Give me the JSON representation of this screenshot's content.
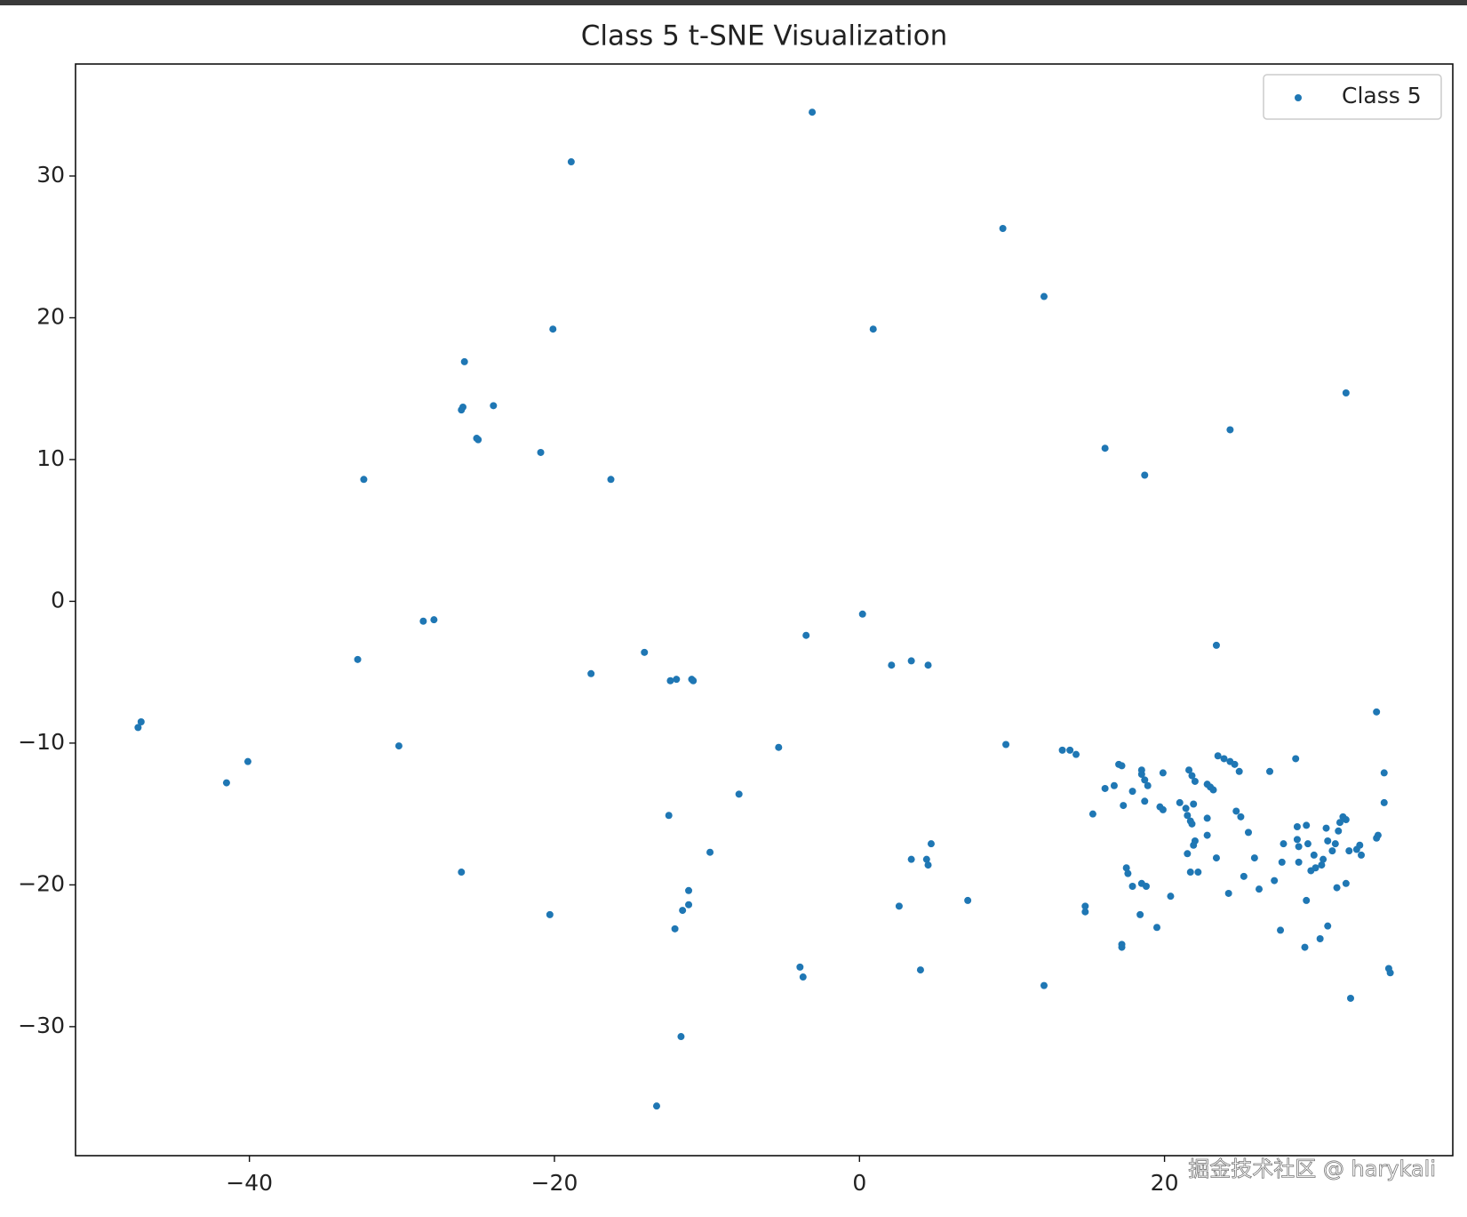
{
  "chart_data": {
    "type": "scatter",
    "title": "Class 5 t-SNE Visualization",
    "xlim": [
      -51.4,
      38.9
    ],
    "ylim": [
      -39.1,
      37.9
    ],
    "xticks": [
      {
        "value": -40,
        "label": "−40"
      },
      {
        "value": -20,
        "label": "−20"
      },
      0,
      20
    ],
    "yticks": [
      {
        "value": -30,
        "label": "−30"
      },
      {
        "value": -20,
        "label": "−20"
      },
      {
        "value": -10,
        "label": "−10"
      },
      0,
      10,
      20,
      30
    ],
    "legend": "upper right",
    "series": [
      {
        "name": "Class 5",
        "color": "#1f77b4",
        "x": [
          -3.1,
          -18.9,
          9.4,
          12.1,
          -20.1,
          0.9,
          -25.9,
          -26.1,
          -26.0,
          -24.0,
          -25.1,
          -25.0,
          -20.9,
          -32.5,
          -16.3,
          31.9,
          24.3,
          16.1,
          18.7,
          0.2,
          -3.5,
          -28.6,
          -27.9,
          -32.9,
          -17.6,
          -14.1,
          -12.4,
          -12.0,
          -11.0,
          -10.9,
          2.1,
          3.4,
          4.5,
          23.4,
          -47.3,
          -47.1,
          -40.1,
          -41.5,
          -30.2,
          -5.3,
          -7.9,
          -12.5,
          -9.8,
          -26.1,
          -20.3,
          -11.2,
          -11.2,
          -11.6,
          -12.1,
          -11.7,
          -13.3,
          -3.9,
          -3.7,
          2.6,
          3.4,
          4.4,
          4.5,
          4.7,
          4.0,
          7.1,
          9.6,
          12.1,
          33.9,
          13.3,
          13.8,
          14.2,
          15.3,
          14.8,
          14.8,
          16.1,
          16.7,
          17.0,
          17.2,
          17.3,
          17.5,
          17.6,
          17.2,
          17.2,
          17.9,
          17.9,
          18.4,
          18.5,
          18.5,
          18.7,
          18.9,
          18.7,
          18.5,
          18.8,
          19.5,
          19.9,
          19.7,
          19.9,
          20.4,
          21.0,
          21.4,
          21.6,
          21.8,
          22.0,
          21.5,
          21.7,
          21.8,
          21.9,
          21.5,
          21.9,
          22.0,
          21.7,
          22.2,
          22.8,
          23.0,
          23.2,
          22.8,
          22.8,
          23.4,
          23.5,
          23.9,
          24.3,
          24.6,
          24.9,
          24.2,
          24.7,
          25.0,
          25.5,
          25.2,
          25.9,
          26.2,
          26.9,
          27.2,
          27.6,
          27.7,
          27.8,
          28.6,
          28.7,
          28.7,
          28.8,
          28.8,
          29.2,
          29.3,
          29.3,
          29.4,
          29.6,
          29.9,
          30.3,
          29.8,
          30.2,
          30.4,
          30.6,
          30.7,
          30.7,
          31.0,
          31.2,
          31.3,
          31.4,
          31.5,
          31.7,
          31.9,
          31.9,
          32.1,
          32.2,
          32.6,
          32.8,
          32.9,
          33.9,
          34.0,
          34.4,
          34.4,
          34.7,
          34.8
        ],
        "y": [
          34.5,
          31.0,
          26.3,
          21.5,
          19.2,
          19.2,
          16.9,
          13.5,
          13.7,
          13.8,
          11.5,
          11.4,
          10.5,
          8.6,
          8.6,
          14.7,
          12.1,
          10.8,
          8.9,
          -0.9,
          -2.4,
          -1.4,
          -1.3,
          -4.1,
          -5.1,
          -3.6,
          -5.6,
          -5.5,
          -5.5,
          -5.6,
          -4.5,
          -4.2,
          -4.5,
          -3.1,
          -8.9,
          -8.5,
          -11.3,
          -12.8,
          -10.2,
          -10.3,
          -13.6,
          -15.1,
          -17.7,
          -19.1,
          -22.1,
          -20.4,
          -21.4,
          -21.8,
          -23.1,
          -30.7,
          -35.6,
          -25.8,
          -26.5,
          -21.5,
          -18.2,
          -18.2,
          -18.6,
          -17.1,
          -26.0,
          -21.1,
          -10.1,
          -27.1,
          -7.8,
          -10.5,
          -10.5,
          -10.8,
          -15.0,
          -21.5,
          -21.9,
          -13.2,
          -13.0,
          -11.5,
          -11.6,
          -14.4,
          -18.8,
          -19.2,
          -24.2,
          -24.4,
          -13.4,
          -20.1,
          -22.1,
          -11.9,
          -12.2,
          -12.6,
          -13.0,
          -14.1,
          -19.9,
          -20.1,
          -23.0,
          -12.1,
          -14.5,
          -14.7,
          -20.8,
          -14.2,
          -14.6,
          -11.9,
          -12.3,
          -12.7,
          -15.1,
          -15.5,
          -15.7,
          -14.3,
          -17.8,
          -17.2,
          -16.9,
          -19.1,
          -19.1,
          -12.9,
          -13.1,
          -13.3,
          -15.3,
          -16.5,
          -18.1,
          -10.9,
          -11.1,
          -11.3,
          -11.5,
          -12.0,
          -20.6,
          -14.8,
          -15.2,
          -16.3,
          -19.4,
          -18.1,
          -20.3,
          -12.0,
          -19.7,
          -23.2,
          -18.4,
          -17.1,
          -11.1,
          -15.9,
          -16.8,
          -17.3,
          -18.4,
          -24.4,
          -15.8,
          -21.1,
          -17.1,
          -19.0,
          -18.8,
          -18.6,
          -17.9,
          -23.8,
          -18.2,
          -16.0,
          -16.9,
          -22.9,
          -17.6,
          -17.1,
          -20.2,
          -16.2,
          -15.6,
          -15.2,
          -15.4,
          -19.9,
          -17.6,
          -28.0,
          -17.5,
          -17.2,
          -17.9,
          -16.7,
          -16.5,
          -12.1,
          -14.2,
          -25.9,
          -26.2
        ]
      }
    ]
  },
  "watermark": "掘金技术社区 @ harykali"
}
